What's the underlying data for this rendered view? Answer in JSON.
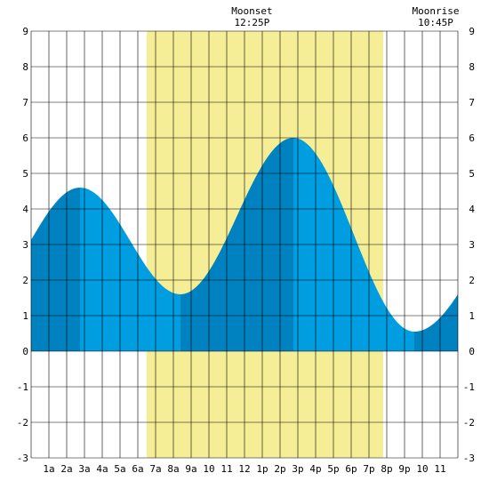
{
  "chart_data": {
    "type": "area",
    "title": "",
    "xlabel": "",
    "ylabel": "",
    "x_range_hours": [
      0,
      24
    ],
    "ylim": [
      -3,
      9
    ],
    "y_ticks": [
      -3,
      -2,
      -1,
      0,
      1,
      2,
      3,
      4,
      5,
      6,
      7,
      8,
      9
    ],
    "x_tick_labels": [
      "1a",
      "2a",
      "3a",
      "4a",
      "5a",
      "6a",
      "7a",
      "8a",
      "9a",
      "10",
      "11",
      "12",
      "1p",
      "2p",
      "3p",
      "4p",
      "5p",
      "6p",
      "7p",
      "8p",
      "9p",
      "10",
      "11"
    ],
    "grid": true,
    "daylight": {
      "start_hour": 6.5,
      "end_hour": 19.8
    },
    "tide_extremes": [
      {
        "hour": 2.75,
        "value": 4.6
      },
      {
        "hour": 8.4,
        "value": 1.6
      },
      {
        "hour": 14.75,
        "value": 6.0
      },
      {
        "hour": 21.55,
        "value": 0.55
      }
    ],
    "start_value": 3.0,
    "end_value": 1.6,
    "shade_boundaries_hours": [
      0,
      2.75,
      8.4,
      14.75,
      21.55,
      24
    ],
    "events": [
      {
        "label": "Moonset",
        "time": "12:25P",
        "hour": 12.42
      },
      {
        "label": "Moonrise",
        "time": "10:45P",
        "hour": 22.75
      }
    ],
    "colors": {
      "daylight": "#f5ee97",
      "water_light": "#009ee0",
      "water_dark": "#0082c0",
      "grid": "#000000",
      "background": "#ffffff"
    }
  }
}
